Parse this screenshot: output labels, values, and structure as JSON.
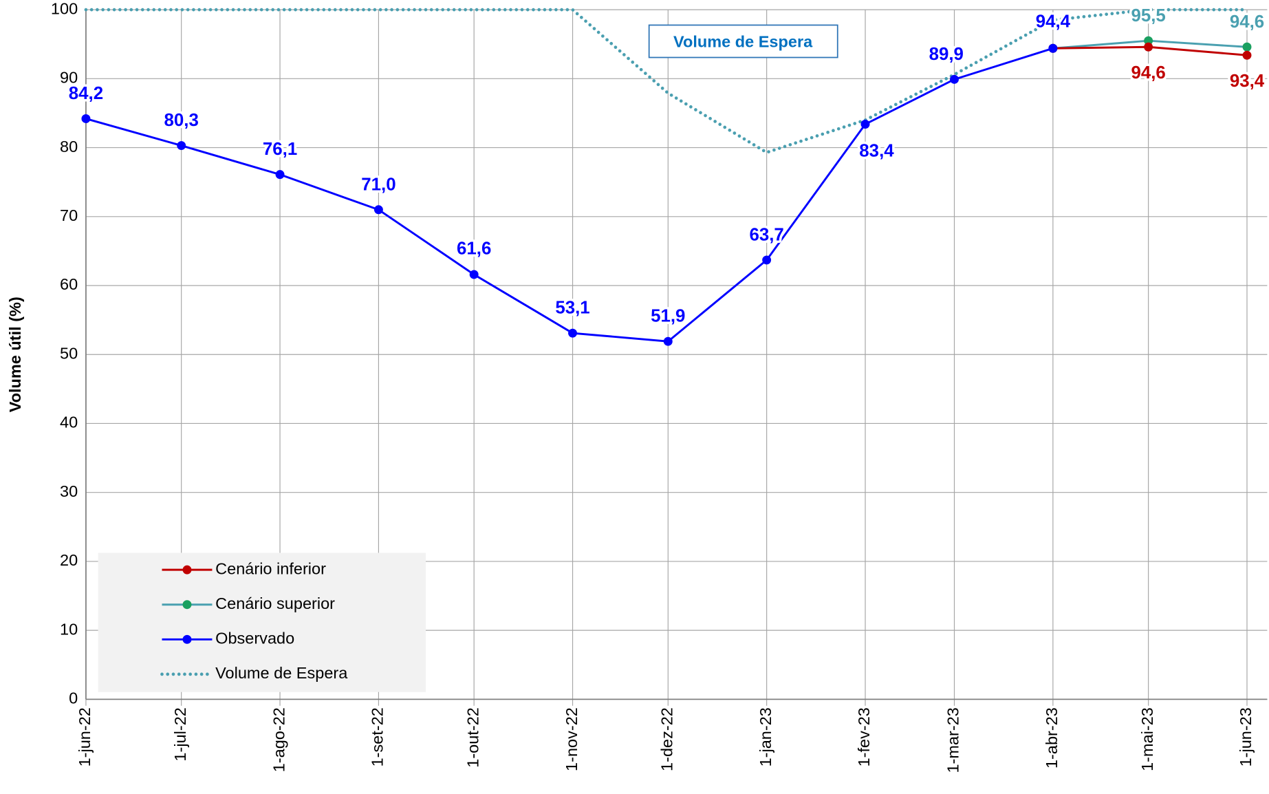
{
  "chart_data": {
    "type": "line",
    "y_label": "Volume útil (%)",
    "annotation": "Volume de Espera",
    "x": [
      "2022-06-01",
      "2022-07-01",
      "2022-08-01",
      "2022-09-01",
      "2022-10-01",
      "2022-11-01",
      "2022-12-01",
      "2023-01-01",
      "2023-02-01",
      "2023-03-01",
      "2023-04-01",
      "2023-05-01",
      "2023-06-01"
    ],
    "xlim": [
      "2022-06-01",
      "2023-06-01"
    ],
    "xticks": [
      {
        "value": "2022-06-01",
        "label": "1-jun-22"
      },
      {
        "value": "2022-07-01",
        "label": "1-jul-22"
      },
      {
        "value": "2022-08-01",
        "label": "1-ago-22"
      },
      {
        "value": "2022-09-01",
        "label": "1-set-22"
      },
      {
        "value": "2022-10-01",
        "label": "1-out-22"
      },
      {
        "value": "2022-11-01",
        "label": "1-nov-22"
      },
      {
        "value": "2022-12-01",
        "label": "1-dez-22"
      },
      {
        "value": "2023-01-01",
        "label": "1-jan-23"
      },
      {
        "value": "2023-02-01",
        "label": "1-fev-23"
      },
      {
        "value": "2023-03-01",
        "label": "1-mar-23"
      },
      {
        "value": "2023-04-01",
        "label": "1-abr-23"
      },
      {
        "value": "2023-05-01",
        "label": "1-mai-23"
      },
      {
        "value": "2023-06-01",
        "label": "1-jun-23"
      }
    ],
    "ylim": [
      0,
      100
    ],
    "yticks": [
      0,
      10,
      20,
      30,
      40,
      50,
      60,
      70,
      80,
      90,
      100
    ],
    "grid": true,
    "legend": "bottom-left",
    "series": [
      {
        "name": "Cenário inferior",
        "color": "#c00000",
        "marker_color": "#c00000",
        "style": "solid",
        "values": [
          null,
          null,
          null,
          null,
          null,
          null,
          null,
          null,
          null,
          null,
          94.4,
          94.6,
          93.4
        ],
        "value_labels": [
          null,
          null,
          null,
          null,
          null,
          null,
          null,
          null,
          null,
          null,
          null,
          "94,6",
          "93,4"
        ]
      },
      {
        "name": "Cenário superior",
        "color": "#4aa0b0",
        "marker_color": "#1aa060",
        "style": "solid",
        "values": [
          null,
          null,
          null,
          null,
          null,
          null,
          null,
          null,
          null,
          null,
          94.4,
          95.5,
          94.6
        ],
        "value_labels": [
          null,
          null,
          null,
          null,
          null,
          null,
          null,
          null,
          null,
          null,
          null,
          "95,5",
          "94,6"
        ]
      },
      {
        "name": "Observado",
        "color": "#0000ff",
        "marker_color": "#0000ff",
        "style": "solid",
        "values": [
          84.2,
          80.3,
          76.1,
          71.0,
          61.6,
          53.1,
          51.9,
          63.7,
          83.4,
          89.9,
          94.4,
          null,
          null
        ],
        "value_labels": [
          "84,2",
          "80,3",
          "76,1",
          "71,0",
          "61,6",
          "53,1",
          "51,9",
          "63,7",
          "83,4",
          "89,9",
          "94,4",
          null,
          null
        ]
      },
      {
        "name": "Volume de Espera",
        "color": "#4a9fb0",
        "style": "dotted",
        "values": [
          100,
          100,
          100,
          100,
          100,
          100,
          87.9,
          79.3,
          84,
          90.6,
          98.5,
          100,
          100
        ]
      }
    ]
  }
}
